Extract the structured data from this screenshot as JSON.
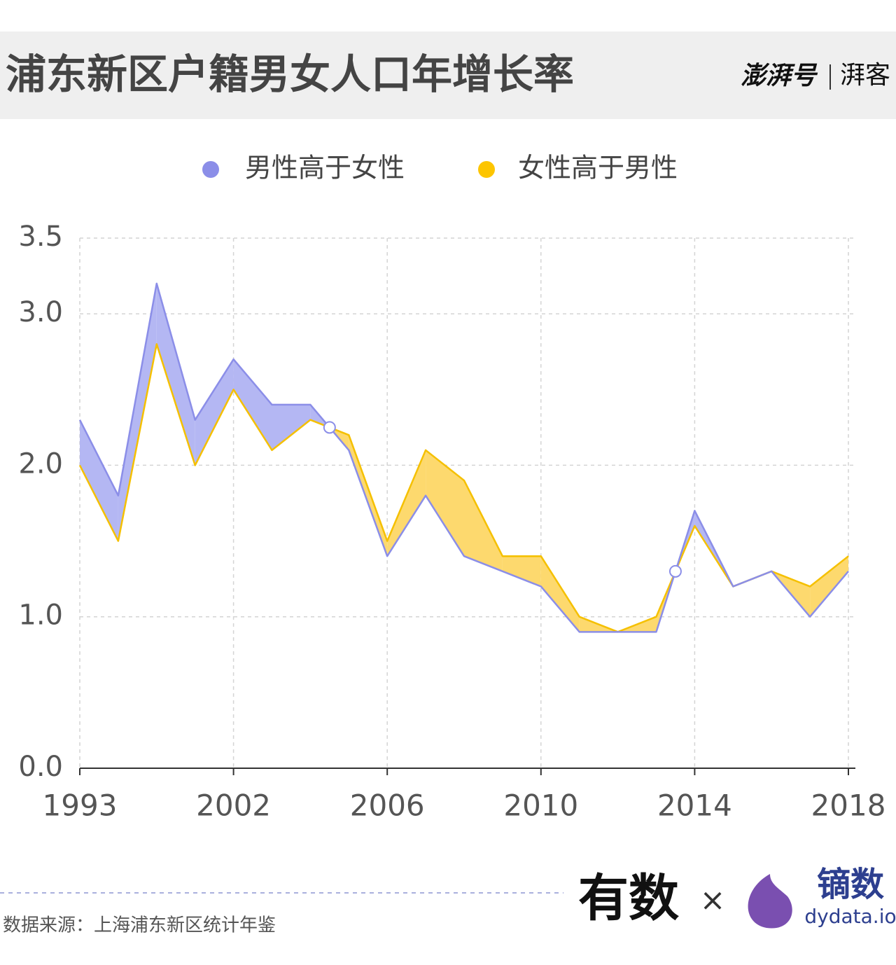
{
  "chart_data": {
    "type": "band-line",
    "title": "浦东新区户籍男女人口年增长率",
    "brand": {
      "left": "澎湃号",
      "right": "湃客"
    },
    "legend": [
      "男性高于女性",
      "女性高于男性"
    ],
    "fill_colors": [
      "#b4b7f3",
      "#fdd96e"
    ],
    "legend_colors": [
      "#8b8ee8",
      "#fdc500"
    ],
    "categories": [
      "1993",
      null,
      null,
      null,
      "2002",
      null,
      null,
      null,
      "2006",
      null,
      null,
      null,
      "2010",
      null,
      null,
      null,
      "2014",
      null,
      null,
      null,
      "2018"
    ],
    "series": [
      {
        "color": "#8b8ee8",
        "values": [
          2.3,
          1.8,
          3.2,
          2.3,
          2.7,
          2.4,
          2.4,
          2.1,
          1.4,
          1.8,
          1.4,
          1.3,
          1.2,
          0.9,
          0.9,
          0.9,
          1.7,
          1.2,
          1.3,
          1.0,
          1.3
        ]
      },
      {
        "color": "#f5c000",
        "values": [
          2.0,
          1.5,
          2.8,
          2.0,
          2.5,
          2.1,
          2.3,
          2.2,
          1.5,
          2.1,
          1.9,
          1.4,
          1.4,
          1.0,
          0.9,
          1.0,
          1.6,
          1.2,
          1.3,
          1.2,
          1.4
        ]
      }
    ],
    "ylim": [
      0,
      3.5
    ],
    "yticks": [
      {
        "value": 0,
        "label": "0.0"
      },
      {
        "value": 1,
        "label": "1.0"
      },
      {
        "value": 2,
        "label": "2.0"
      },
      {
        "value": 3,
        "label": "3.0"
      },
      3.5
    ],
    "grid": true,
    "source": "数据来源：上海浦东新区统计年鉴",
    "footer_logos": {
      "left": "有数",
      "cross": "×",
      "right": "镝数",
      "site": "dydata.io"
    }
  }
}
